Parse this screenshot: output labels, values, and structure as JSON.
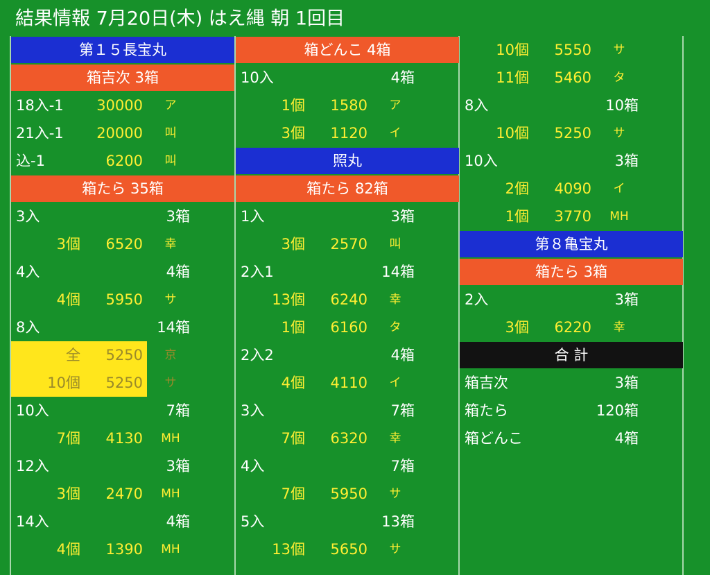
{
  "title": "結果情報 7月20日(木) はえ縄 朝 1回目",
  "columns": [
    [
      {
        "ship": "第１５長宝丸"
      },
      {
        "fish": "箱吉次 3箱"
      },
      {
        "entry": "18入-1",
        "price": "30000",
        "mark": "ア"
      },
      {
        "entry": "21入-1",
        "price": "20000",
        "mark": "叫"
      },
      {
        "entry": "込-1",
        "price": "6200",
        "mark": "叫"
      },
      {
        "fish": "箱たら 35箱"
      },
      {
        "entry": "3入",
        "boxes": "3箱"
      },
      {
        "count": "3個",
        "price": "6520",
        "mark": "幸"
      },
      {
        "entry": "4入",
        "boxes": "4箱"
      },
      {
        "count": "4個",
        "price": "5950",
        "mark": "サ"
      },
      {
        "entry": "8入",
        "boxes": "14箱"
      },
      {
        "count": "全",
        "price": "5250",
        "mark": "京",
        "highlight": true
      },
      {
        "count": "10個",
        "price": "5250",
        "mark": "サ",
        "highlight": true
      },
      {
        "entry": "10入",
        "boxes": "7箱"
      },
      {
        "count": "7個",
        "price": "4130",
        "mark": "MH"
      },
      {
        "entry": "12入",
        "boxes": "3箱"
      },
      {
        "count": "3個",
        "price": "2470",
        "mark": "MH"
      },
      {
        "entry": "14入",
        "boxes": "4箱"
      },
      {
        "count": "4個",
        "price": "1390",
        "mark": "MH"
      }
    ],
    [
      {
        "fish": "箱どんこ 4箱"
      },
      {
        "entry": "10入",
        "boxes": "4箱"
      },
      {
        "count": "1個",
        "price": "1580",
        "mark": "ア"
      },
      {
        "count": "3個",
        "price": "1120",
        "mark": "イ"
      },
      {
        "ship": "照丸"
      },
      {
        "fish": "箱たら 82箱"
      },
      {
        "entry": "1入",
        "boxes": "3箱"
      },
      {
        "count": "3個",
        "price": "2570",
        "mark": "叫"
      },
      {
        "entry": "2入1",
        "boxes": "14箱"
      },
      {
        "count": "13個",
        "price": "6240",
        "mark": "幸"
      },
      {
        "count": "1個",
        "price": "6160",
        "mark": "タ"
      },
      {
        "entry": "2入2",
        "boxes": "4箱"
      },
      {
        "count": "4個",
        "price": "4110",
        "mark": "イ"
      },
      {
        "entry": "3入",
        "boxes": "7箱"
      },
      {
        "count": "7個",
        "price": "6320",
        "mark": "幸"
      },
      {
        "entry": "4入",
        "boxes": "7箱"
      },
      {
        "count": "7個",
        "price": "5950",
        "mark": "サ"
      },
      {
        "entry": "5入",
        "boxes": "13箱"
      },
      {
        "count": "13個",
        "price": "5650",
        "mark": "サ"
      }
    ],
    [
      {
        "count": "10個",
        "price": "5550",
        "mark": "サ"
      },
      {
        "count": "11個",
        "price": "5460",
        "mark": "タ"
      },
      {
        "entry": "8入",
        "boxes": "10箱"
      },
      {
        "count": "10個",
        "price": "5250",
        "mark": "サ"
      },
      {
        "entry": "10入",
        "boxes": "3箱"
      },
      {
        "count": "2個",
        "price": "4090",
        "mark": "イ"
      },
      {
        "count": "1個",
        "price": "3770",
        "mark": "MH"
      },
      {
        "ship": "第８亀宝丸"
      },
      {
        "fish": "箱たら 3箱"
      },
      {
        "entry": "2入",
        "boxes": "3箱"
      },
      {
        "count": "3個",
        "price": "6220",
        "mark": "幸"
      },
      {
        "total": "合 計"
      },
      {
        "entry": "箱吉次",
        "boxes": "3箱"
      },
      {
        "entry": "箱たら",
        "boxes": "120箱"
      },
      {
        "entry": "箱どんこ",
        "boxes": "4箱"
      }
    ]
  ]
}
